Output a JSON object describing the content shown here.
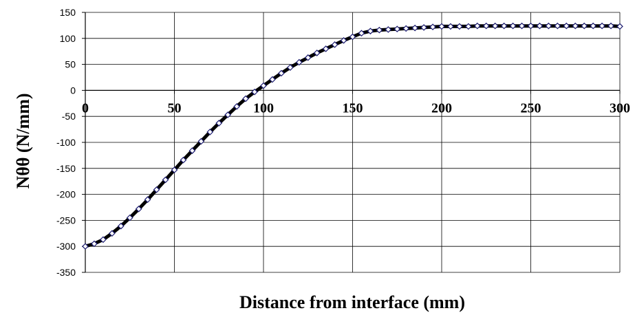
{
  "chart_data": {
    "type": "line",
    "title": "",
    "xlabel": "Distance from interface (mm)",
    "ylabel": "Nθθ (N/mm)",
    "xlim": [
      0,
      300
    ],
    "ylim": [
      -350,
      150
    ],
    "xticks": [
      "0",
      "50",
      "100",
      "150",
      "200",
      "250",
      "300"
    ],
    "yticks": [
      "150",
      "100",
      "50",
      "0",
      "-50",
      "-100",
      "-150",
      "-200",
      "-250",
      "-300",
      "-350"
    ],
    "grid": true,
    "legend": "none",
    "colors": {
      "line": "#000000",
      "marker_edge": "#1a1a6e",
      "marker_fill": "#ffffff"
    },
    "series": [
      {
        "x": [
          0,
          5,
          10,
          15,
          20,
          25,
          30,
          35,
          40,
          45,
          50,
          55,
          60,
          65,
          70,
          75,
          80,
          85,
          90,
          95,
          100,
          105,
          110,
          115,
          120,
          125,
          130,
          135,
          140,
          145,
          150,
          155,
          160,
          165,
          170,
          175,
          180,
          185,
          190,
          195,
          200,
          205,
          210,
          215,
          220,
          225,
          230,
          235,
          240,
          245,
          250,
          255,
          260,
          265,
          270,
          275,
          280,
          285,
          290,
          295,
          300
        ],
        "y": [
          -300,
          -295,
          -287,
          -275,
          -261,
          -245,
          -228,
          -210,
          -191,
          -172,
          -153,
          -134,
          -116,
          -98,
          -80,
          -63,
          -47,
          -31,
          -16,
          -3,
          9,
          21,
          33,
          44,
          54,
          63,
          72,
          80,
          88,
          96,
          103,
          110,
          114,
          116,
          117,
          118,
          119,
          120,
          121,
          122,
          123,
          123,
          123,
          123,
          124,
          124,
          124,
          124,
          124,
          124,
          124,
          124,
          124,
          124,
          124,
          124,
          124,
          124,
          124,
          124,
          123
        ]
      }
    ]
  }
}
